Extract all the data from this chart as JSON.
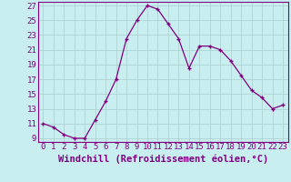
{
  "xlabel": "Windchill (Refroidissement éolien,°C)",
  "x": [
    0,
    1,
    2,
    3,
    4,
    5,
    6,
    7,
    8,
    9,
    10,
    11,
    12,
    13,
    14,
    15,
    16,
    17,
    18,
    19,
    20,
    21,
    22,
    23
  ],
  "y": [
    11,
    10.5,
    9.5,
    9,
    9,
    11.5,
    14,
    17,
    22.5,
    25,
    27,
    26.5,
    24.5,
    22.5,
    18.5,
    21.5,
    21.5,
    21,
    19.5,
    17.5,
    15.5,
    14.5,
    13,
    13.5
  ],
  "ylim": [
    8.5,
    27.5
  ],
  "yticks": [
    9,
    11,
    13,
    15,
    17,
    19,
    21,
    23,
    25,
    27
  ],
  "xlim": [
    -0.5,
    23.5
  ],
  "xticks": [
    0,
    1,
    2,
    3,
    4,
    5,
    6,
    7,
    8,
    9,
    10,
    11,
    12,
    13,
    14,
    15,
    16,
    17,
    18,
    19,
    20,
    21,
    22,
    23
  ],
  "line_color": "#800080",
  "marker": "+",
  "bg_color": "#c8eef0",
  "grid_color": "#aacccc",
  "font_color": "#800080",
  "font_size": 6.5,
  "xlabel_fontsize": 7.5
}
